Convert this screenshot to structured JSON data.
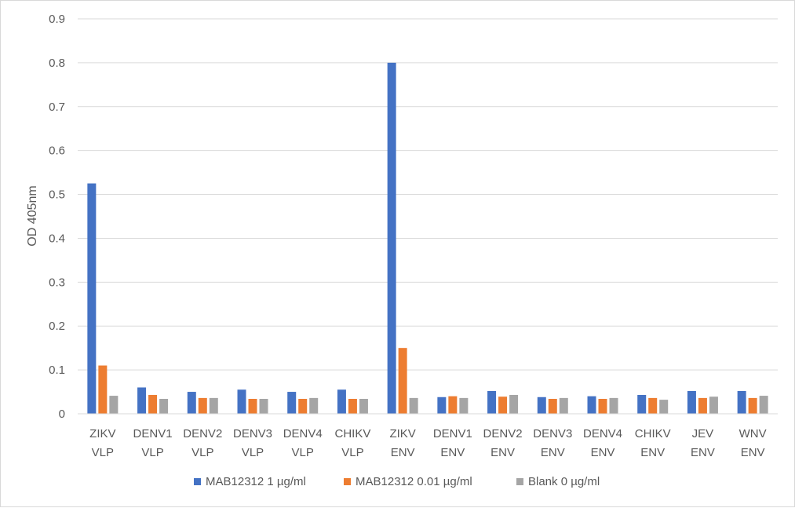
{
  "chart_data": {
    "type": "bar",
    "title": "",
    "xlabel": "",
    "ylabel": "OD 405nm",
    "ylim": [
      0,
      0.9
    ],
    "yticks": [
      "0",
      "0.1",
      "0.2",
      "0.3",
      "0.4",
      "0.5",
      "0.6",
      "0.7",
      "0.8",
      "0.9"
    ],
    "grid": true,
    "legend_position": "bottom",
    "categories": [
      [
        "ZIKV",
        "VLP"
      ],
      [
        "DENV1",
        "VLP"
      ],
      [
        "DENV2",
        "VLP"
      ],
      [
        "DENV3",
        "VLP"
      ],
      [
        "DENV4",
        "VLP"
      ],
      [
        "CHIKV",
        "VLP"
      ],
      [
        "ZIKV",
        "ENV"
      ],
      [
        "DENV1",
        "ENV"
      ],
      [
        "DENV2",
        "ENV"
      ],
      [
        "DENV3",
        "ENV"
      ],
      [
        "DENV4",
        "ENV"
      ],
      [
        "CHIKV",
        "ENV"
      ],
      [
        "JEV",
        "ENV"
      ],
      [
        "WNV",
        "ENV"
      ]
    ],
    "series": [
      {
        "name": "MAB12312 1 µg/ml",
        "color": "#4472c4",
        "values": [
          0.525,
          0.06,
          0.05,
          0.055,
          0.05,
          0.055,
          0.8,
          0.038,
          0.052,
          0.038,
          0.04,
          0.043,
          0.052,
          0.052
        ]
      },
      {
        "name": "MAB12312 0.01 µg/ml",
        "color": "#ed7d31",
        "values": [
          0.11,
          0.043,
          0.036,
          0.034,
          0.034,
          0.034,
          0.15,
          0.04,
          0.039,
          0.034,
          0.034,
          0.036,
          0.036,
          0.036
        ]
      },
      {
        "name": "Blank 0 µg/ml",
        "color": "#a5a5a5",
        "values": [
          0.041,
          0.034,
          0.036,
          0.034,
          0.036,
          0.034,
          0.036,
          0.036,
          0.043,
          0.036,
          0.036,
          0.032,
          0.039,
          0.041
        ]
      }
    ]
  }
}
